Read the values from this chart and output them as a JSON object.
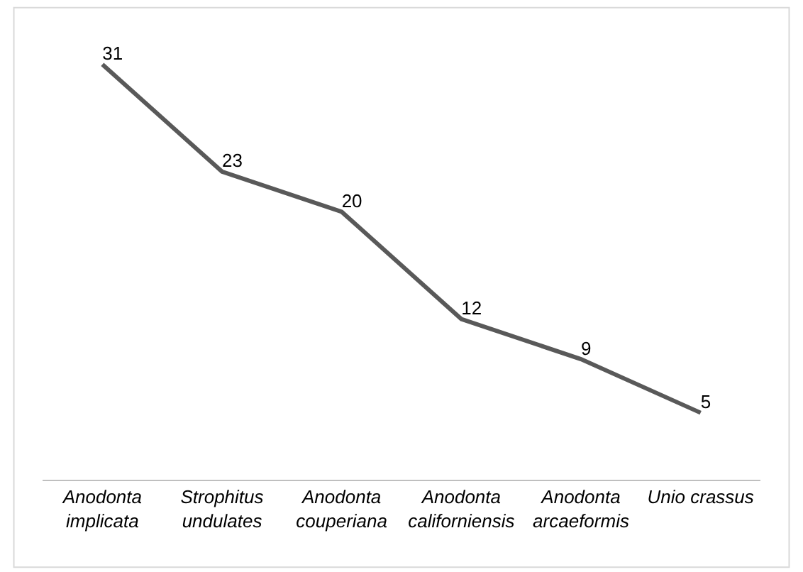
{
  "chart_data": {
    "type": "line",
    "categories": [
      "Anodonta implicata",
      "Strophitus undulates",
      "Anodonta couperiana",
      "Anodonta californiensis",
      "Anodonta arcaeformis",
      "Unio crassus"
    ],
    "series": [
      {
        "color": "#595959",
        "values": [
          31,
          23,
          20,
          12,
          9,
          5
        ]
      }
    ],
    "data_labels": true,
    "marker": "none",
    "line_style": "solid",
    "legend": false
  }
}
